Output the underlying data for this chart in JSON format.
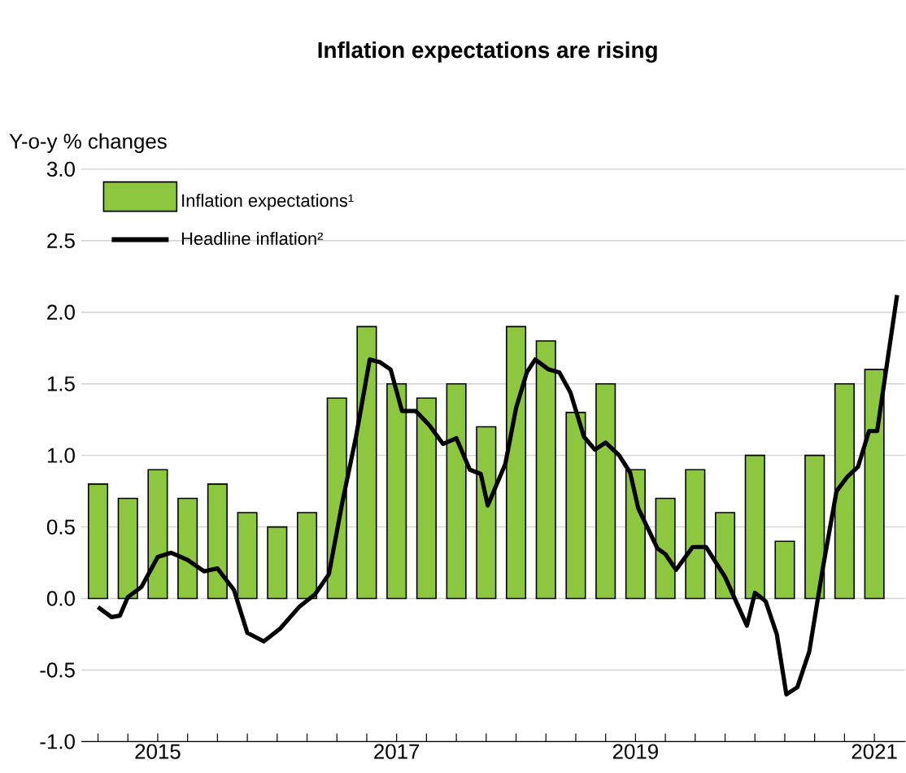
{
  "chart_data": {
    "type": "bar",
    "title": "Inflation expectations are rising",
    "ylabel": "Y-o-y % changes",
    "ylim": [
      -1.0,
      3.0
    ],
    "yticks": [
      {
        "value": -1.0,
        "label": "-1.0"
      },
      {
        "value": -0.5,
        "label": "-0.5"
      },
      {
        "value": 0,
        "label": "0.0"
      },
      {
        "value": 0.5,
        "label": "0.5"
      },
      {
        "value": 1.0,
        "label": "1.0"
      },
      {
        "value": 1.5,
        "label": "1.5"
      },
      {
        "value": 2.0,
        "label": "2.0"
      },
      {
        "value": 2.5,
        "label": "2.5"
      },
      {
        "value": 3.0,
        "label": "3.0"
      }
    ],
    "xlim": [
      2014.86,
      2021.76
    ],
    "xticks": [
      {
        "value": 2015.0,
        "label": null
      },
      {
        "value": 2015.25,
        "label": null
      },
      {
        "value": 2015.5,
        "label": "2015"
      },
      {
        "value": 2015.75,
        "label": null
      },
      {
        "value": 2016.0,
        "label": null
      },
      {
        "value": 2016.25,
        "label": null
      },
      {
        "value": 2016.5,
        "label": null
      },
      {
        "value": 2016.75,
        "label": null
      },
      {
        "value": 2017.0,
        "label": null
      },
      {
        "value": 2017.25,
        "label": null
      },
      {
        "value": 2017.5,
        "label": "2017"
      },
      {
        "value": 2017.75,
        "label": null
      },
      {
        "value": 2018.0,
        "label": null
      },
      {
        "value": 2018.25,
        "label": null
      },
      {
        "value": 2018.5,
        "label": null
      },
      {
        "value": 2018.75,
        "label": null
      },
      {
        "value": 2019.0,
        "label": null
      },
      {
        "value": 2019.25,
        "label": null
      },
      {
        "value": 2019.5,
        "label": "2019"
      },
      {
        "value": 2019.75,
        "label": null
      },
      {
        "value": 2020.0,
        "label": null
      },
      {
        "value": 2020.25,
        "label": null
      },
      {
        "value": 2020.5,
        "label": null
      },
      {
        "value": 2020.75,
        "label": null
      },
      {
        "value": 2021.0,
        "label": null
      },
      {
        "value": 2021.25,
        "label": null
      },
      {
        "value": 2021.5,
        "label": "2021"
      }
    ],
    "grid": "y",
    "legend": "top left",
    "series": [
      {
        "name": "Inflation expectations¹",
        "color": "#8dc63f",
        "x": [
          2015.0,
          2015.25,
          2015.5,
          2015.75,
          2016.0,
          2016.25,
          2016.5,
          2016.75,
          2017.0,
          2017.25,
          2017.5,
          2017.75,
          2018.0,
          2018.25,
          2018.5,
          2018.75,
          2019.0,
          2019.25,
          2019.5,
          2019.75,
          2020.0,
          2020.25,
          2020.5,
          2020.75,
          2021.0,
          2021.25,
          2021.5
        ],
        "values": [
          0.8,
          0.7,
          0.9,
          0.7,
          0.8,
          0.6,
          0.5,
          0.6,
          1.4,
          1.9,
          1.5,
          1.4,
          1.5,
          1.2,
          1.9,
          1.8,
          1.3,
          1.5,
          0.9,
          0.7,
          0.9,
          0.6,
          1.0,
          0.4,
          1.0,
          1.5,
          1.6
        ]
      },
      {
        "name": "Headline inflation²",
        "type": "line",
        "color": "#000000",
        "x": [
          2015.0,
          2015.113,
          2015.183,
          2015.25,
          2015.363,
          2015.5,
          2015.613,
          2015.75,
          2015.888,
          2016.0,
          2016.138,
          2016.25,
          2016.388,
          2016.525,
          2016.683,
          2016.818,
          2016.933,
          2017.045,
          2017.16,
          2017.275,
          2017.363,
          2017.45,
          2017.545,
          2017.66,
          2017.775,
          2017.888,
          2018.0,
          2018.113,
          2018.205,
          2018.263,
          2018.41,
          2018.5,
          2018.59,
          2018.66,
          2018.773,
          2018.863,
          2018.955,
          2019.068,
          2019.16,
          2019.25,
          2019.363,
          2019.455,
          2019.523,
          2019.683,
          2019.75,
          2019.84,
          2019.978,
          2020.09,
          2020.25,
          2020.433,
          2020.5,
          2020.59,
          2020.683,
          2020.763,
          2020.855,
          2020.955,
          2021.068,
          2021.183,
          2021.273,
          2021.363,
          2021.455,
          2021.523,
          2021.69
        ],
        "values": [
          -0.06,
          -0.13,
          -0.12,
          0.01,
          0.08,
          0.29,
          0.32,
          0.27,
          0.19,
          0.21,
          0.06,
          -0.24,
          -0.3,
          -0.21,
          -0.06,
          0.03,
          0.17,
          0.67,
          1.13,
          1.67,
          1.65,
          1.6,
          1.31,
          1.31,
          1.21,
          1.08,
          1.12,
          0.9,
          0.87,
          0.65,
          0.94,
          1.33,
          1.58,
          1.67,
          1.6,
          1.58,
          1.44,
          1.13,
          1.04,
          1.09,
          1.0,
          0.88,
          0.63,
          0.35,
          0.31,
          0.2,
          0.36,
          0.36,
          0.15,
          -0.19,
          0.04,
          -0.02,
          -0.25,
          -0.67,
          -0.62,
          -0.37,
          0.21,
          0.75,
          0.85,
          0.92,
          1.17,
          1.17,
          2.12
        ]
      }
    ]
  }
}
